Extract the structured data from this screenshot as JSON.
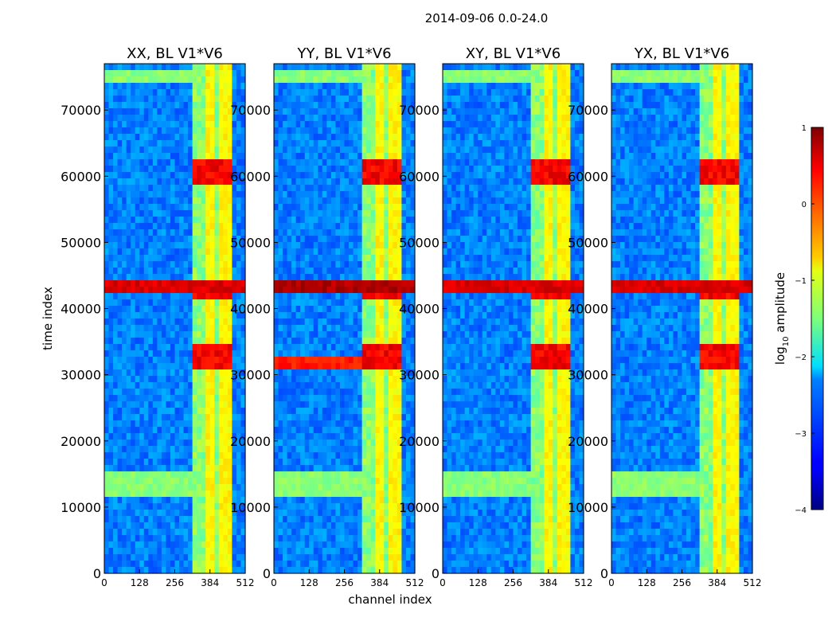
{
  "figure": {
    "suptitle": "2014-09-06 0.0-24.0"
  },
  "chart_data": {
    "type": "heatmap",
    "suptitle": "2014-09-06 0.0-24.0",
    "xlabel": "channel index",
    "ylabel": "time index",
    "xlim": [
      0,
      512
    ],
    "ylim": [
      0,
      77000
    ],
    "x_ticks": [
      0,
      128,
      256,
      384,
      512
    ],
    "y_ticks": [
      0,
      10000,
      20000,
      30000,
      40000,
      50000,
      60000,
      70000
    ],
    "panels": [
      {
        "title": "XX, BL V1*V6",
        "pol": "XX"
      },
      {
        "title": "YY, BL V1*V6",
        "pol": "YY"
      },
      {
        "title": "XY, BL V1*V6",
        "pol": "XY"
      },
      {
        "title": "YX, BL V1*V6",
        "pol": "YX"
      }
    ],
    "colorbar": {
      "label_main": "log",
      "label_sub": "10",
      "label_tail": " amplitude",
      "range": [
        -4,
        1
      ],
      "ticks": [
        1,
        0,
        -1,
        -2,
        -3,
        -4
      ],
      "tick_labels": [
        "1",
        "0",
        "−1",
        "−2",
        "−3",
        "−4"
      ],
      "colormap": "jet"
    },
    "features": {
      "rfi_channel_band": [
        320,
        470
      ],
      "rfi_channel_lines": [
        335,
        353,
        375,
        395,
        420,
        440,
        458
      ],
      "strong_time_bands": [
        [
          41500,
          44500
        ],
        [
          30500,
          35000
        ],
        [
          58500,
          62500
        ]
      ],
      "broadband_time_bands": [
        [
          42000,
          44000
        ],
        [
          74000,
          76000
        ],
        [
          12000,
          15500
        ]
      ]
    }
  },
  "colors": {
    "background": "#00007f",
    "frame": "#000000"
  }
}
